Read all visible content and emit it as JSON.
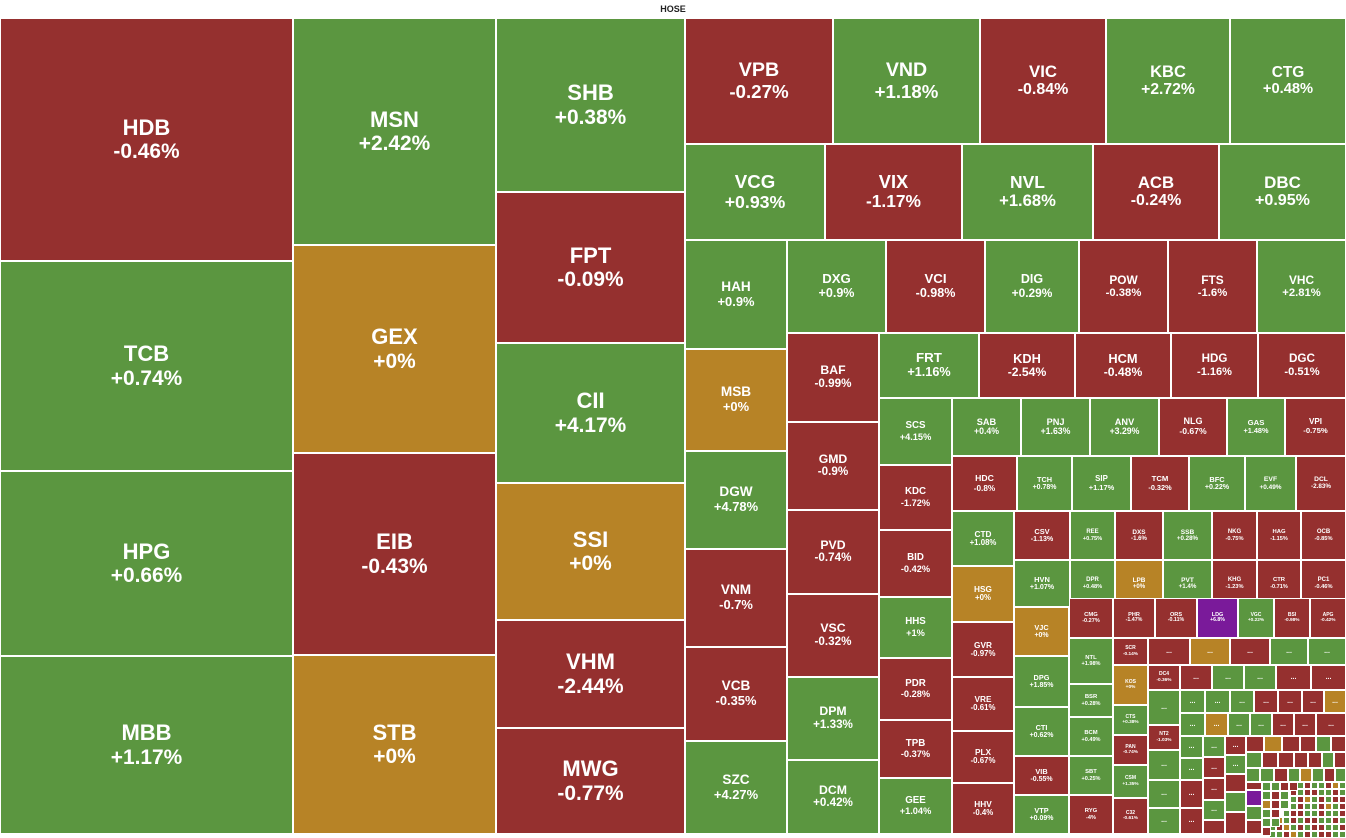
{
  "header": {
    "exchange": "HOSE"
  },
  "colors": {
    "up": "#5b9640",
    "down": "#95302f",
    "flat": "#b78326",
    "ceiling": "#7a1a9a"
  },
  "chart_data": {
    "type": "treemap",
    "title": "HOSE",
    "tiles": [
      {
        "symbol": "HDB",
        "change": "-0.46%",
        "dir": "down"
      },
      {
        "symbol": "TCB",
        "change": "+0.74%",
        "dir": "up"
      },
      {
        "symbol": "HPG",
        "change": "+0.66%",
        "dir": "up"
      },
      {
        "symbol": "MBB",
        "change": "+1.17%",
        "dir": "up"
      },
      {
        "symbol": "MSN",
        "change": "+2.42%",
        "dir": "up"
      },
      {
        "symbol": "GEX",
        "change": "+0%",
        "dir": "flat"
      },
      {
        "symbol": "EIB",
        "change": "-0.43%",
        "dir": "down"
      },
      {
        "symbol": "STB",
        "change": "+0%",
        "dir": "flat"
      },
      {
        "symbol": "SHB",
        "change": "+0.38%",
        "dir": "up"
      },
      {
        "symbol": "FPT",
        "change": "-0.09%",
        "dir": "down"
      },
      {
        "symbol": "CII",
        "change": "+4.17%",
        "dir": "up"
      },
      {
        "symbol": "SSI",
        "change": "+0%",
        "dir": "flat"
      },
      {
        "symbol": "VHM",
        "change": "-2.44%",
        "dir": "down"
      },
      {
        "symbol": "MWG",
        "change": "-0.77%",
        "dir": "down"
      },
      {
        "symbol": "VPB",
        "change": "-0.27%",
        "dir": "down"
      },
      {
        "symbol": "VND",
        "change": "+1.18%",
        "dir": "up"
      },
      {
        "symbol": "VIC",
        "change": "-0.84%",
        "dir": "down"
      },
      {
        "symbol": "KBC",
        "change": "+2.72%",
        "dir": "up"
      },
      {
        "symbol": "CTG",
        "change": "+0.48%",
        "dir": "up"
      },
      {
        "symbol": "VCG",
        "change": "+0.93%",
        "dir": "up"
      },
      {
        "symbol": "VIX",
        "change": "-1.17%",
        "dir": "down"
      },
      {
        "symbol": "NVL",
        "change": "+1.68%",
        "dir": "up"
      },
      {
        "symbol": "ACB",
        "change": "-0.24%",
        "dir": "down"
      },
      {
        "symbol": "DBC",
        "change": "+0.95%",
        "dir": "up"
      },
      {
        "symbol": "HAH",
        "change": "+0.9%",
        "dir": "up"
      },
      {
        "symbol": "MSB",
        "change": "+0%",
        "dir": "flat"
      },
      {
        "symbol": "DGW",
        "change": "+4.78%",
        "dir": "up"
      },
      {
        "symbol": "VNM",
        "change": "-0.7%",
        "dir": "down"
      },
      {
        "symbol": "VCB",
        "change": "-0.35%",
        "dir": "down"
      },
      {
        "symbol": "SZC",
        "change": "+4.27%",
        "dir": "up"
      },
      {
        "symbol": "DXG",
        "change": "+0.9%",
        "dir": "up"
      },
      {
        "symbol": "VCI",
        "change": "-0.98%",
        "dir": "down"
      },
      {
        "symbol": "DIG",
        "change": "+0.29%",
        "dir": "up"
      },
      {
        "symbol": "POW",
        "change": "-0.38%",
        "dir": "down"
      },
      {
        "symbol": "FTS",
        "change": "-1.6%",
        "dir": "down"
      },
      {
        "symbol": "VHC",
        "change": "+2.81%",
        "dir": "up"
      },
      {
        "symbol": "BAF",
        "change": "-0.99%",
        "dir": "down"
      },
      {
        "symbol": "GMD",
        "change": "-0.9%",
        "dir": "down"
      },
      {
        "symbol": "PVD",
        "change": "-0.74%",
        "dir": "down"
      },
      {
        "symbol": "VSC",
        "change": "-0.32%",
        "dir": "down"
      },
      {
        "symbol": "DPM",
        "change": "+1.33%",
        "dir": "up"
      },
      {
        "symbol": "DCM",
        "change": "+0.42%",
        "dir": "up"
      },
      {
        "symbol": "FRT",
        "change": "+1.16%",
        "dir": "up"
      },
      {
        "symbol": "KDH",
        "change": "-2.54%",
        "dir": "down"
      },
      {
        "symbol": "HCM",
        "change": "-0.48%",
        "dir": "down"
      },
      {
        "symbol": "HDG",
        "change": "-1.16%",
        "dir": "down"
      },
      {
        "symbol": "DGC",
        "change": "-0.51%",
        "dir": "down"
      },
      {
        "symbol": "SCS",
        "change": "+4.15%",
        "dir": "up"
      },
      {
        "symbol": "KDC",
        "change": "-1.72%",
        "dir": "down"
      },
      {
        "symbol": "BID",
        "change": "-0.42%",
        "dir": "down"
      },
      {
        "symbol": "HHS",
        "change": "+1%",
        "dir": "up"
      },
      {
        "symbol": "PDR",
        "change": "-0.28%",
        "dir": "down"
      },
      {
        "symbol": "TPB",
        "change": "-0.37%",
        "dir": "down"
      },
      {
        "symbol": "GEE",
        "change": "+1.04%",
        "dir": "up"
      },
      {
        "symbol": "SAB",
        "change": "+0.4%",
        "dir": "up"
      },
      {
        "symbol": "PNJ",
        "change": "+1.63%",
        "dir": "up"
      },
      {
        "symbol": "ANV",
        "change": "+3.29%",
        "dir": "up"
      },
      {
        "symbol": "NLG",
        "change": "-0.67%",
        "dir": "down"
      },
      {
        "symbol": "GAS",
        "change": "+1.48%",
        "dir": "up"
      },
      {
        "symbol": "VPI",
        "change": "-0.75%",
        "dir": "down"
      },
      {
        "symbol": "HDC",
        "change": "-0.8%",
        "dir": "down"
      },
      {
        "symbol": "TCH",
        "change": "+0.78%",
        "dir": "up"
      },
      {
        "symbol": "SIP",
        "change": "+1.17%",
        "dir": "up"
      },
      {
        "symbol": "TCM",
        "change": "-0.32%",
        "dir": "down"
      },
      {
        "symbol": "BFC",
        "change": "+0.22%",
        "dir": "up"
      },
      {
        "symbol": "EVF",
        "change": "+0.49%",
        "dir": "up"
      },
      {
        "symbol": "DCL",
        "change": "-2.83%",
        "dir": "down"
      },
      {
        "symbol": "CTD",
        "change": "+1.08%",
        "dir": "up"
      },
      {
        "symbol": "HSG",
        "change": "+0%",
        "dir": "flat"
      },
      {
        "symbol": "GVR",
        "change": "-0.97%",
        "dir": "down"
      },
      {
        "symbol": "VRE",
        "change": "-0.61%",
        "dir": "down"
      },
      {
        "symbol": "PLX",
        "change": "-0.67%",
        "dir": "down"
      },
      {
        "symbol": "HHV",
        "change": "-0.4%",
        "dir": "down"
      },
      {
        "symbol": "CSV",
        "change": "-1.13%",
        "dir": "down"
      },
      {
        "symbol": "REE",
        "change": "+0.75%",
        "dir": "up"
      },
      {
        "symbol": "DXS",
        "change": "-1.6%",
        "dir": "down"
      },
      {
        "symbol": "SSB",
        "change": "+0.28%",
        "dir": "up"
      },
      {
        "symbol": "NKG",
        "change": "-0.75%",
        "dir": "down"
      },
      {
        "symbol": "HAG",
        "change": "-1.15%",
        "dir": "down"
      },
      {
        "symbol": "OCB",
        "change": "-0.85%",
        "dir": "down"
      },
      {
        "symbol": "HVN",
        "change": "+1.07%",
        "dir": "up"
      },
      {
        "symbol": "DPR",
        "change": "+0.48%",
        "dir": "up"
      },
      {
        "symbol": "LPB",
        "change": "+0%",
        "dir": "flat"
      },
      {
        "symbol": "PVT",
        "change": "+1.4%",
        "dir": "up"
      },
      {
        "symbol": "KHG",
        "change": "-1.23%",
        "dir": "down"
      },
      {
        "symbol": "CTR",
        "change": "-0.71%",
        "dir": "down"
      },
      {
        "symbol": "PC1",
        "change": "-0.46%",
        "dir": "down"
      },
      {
        "symbol": "VJC",
        "change": "+0%",
        "dir": "flat"
      },
      {
        "symbol": "CMG",
        "change": "-0.27%",
        "dir": "down"
      },
      {
        "symbol": "PHR",
        "change": "-1.47%",
        "dir": "down"
      },
      {
        "symbol": "ORS",
        "change": "-0.11%",
        "dir": "down"
      },
      {
        "symbol": "LDG",
        "change": "+6.8%",
        "dir": "ceiling"
      },
      {
        "symbol": "VGC",
        "change": "+0.22%",
        "dir": "up"
      },
      {
        "symbol": "BSI",
        "change": "-0.98%",
        "dir": "down"
      },
      {
        "symbol": "APG",
        "change": "-0.42%",
        "dir": "down"
      },
      {
        "symbol": "NTL",
        "change": "+1.98%",
        "dir": "up"
      },
      {
        "symbol": "SCR",
        "change": "-0.14%",
        "dir": "down"
      },
      {
        "symbol": "DPG",
        "change": "+1.85%",
        "dir": "up"
      },
      {
        "symbol": "BSR",
        "change": "+0.28%",
        "dir": "up"
      },
      {
        "symbol": "KOS",
        "change": "+0%",
        "dir": "flat"
      },
      {
        "symbol": "DC4",
        "change": "-0.36%",
        "dir": "down"
      },
      {
        "symbol": "CTI",
        "change": "+0.62%",
        "dir": "up"
      },
      {
        "symbol": "BCM",
        "change": "+0.49%",
        "dir": "up"
      },
      {
        "symbol": "CTS",
        "change": "+0.38%",
        "dir": "up"
      },
      {
        "symbol": "NT2",
        "change": "-1.03%",
        "dir": "down"
      },
      {
        "symbol": "PAN",
        "change": "-0.74%",
        "dir": "down"
      },
      {
        "symbol": "VIB",
        "change": "-0.55%",
        "dir": "down"
      },
      {
        "symbol": "SBT",
        "change": "+0.25%",
        "dir": "up"
      },
      {
        "symbol": "CSM",
        "change": "+1.35%",
        "dir": "up"
      },
      {
        "symbol": "VTP",
        "change": "+0.09%",
        "dir": "up"
      },
      {
        "symbol": "RYG",
        "change": "-4%",
        "dir": "down"
      },
      {
        "symbol": "C32",
        "change": "-0.61%",
        "dir": "down"
      }
    ],
    "more_label": "..."
  }
}
